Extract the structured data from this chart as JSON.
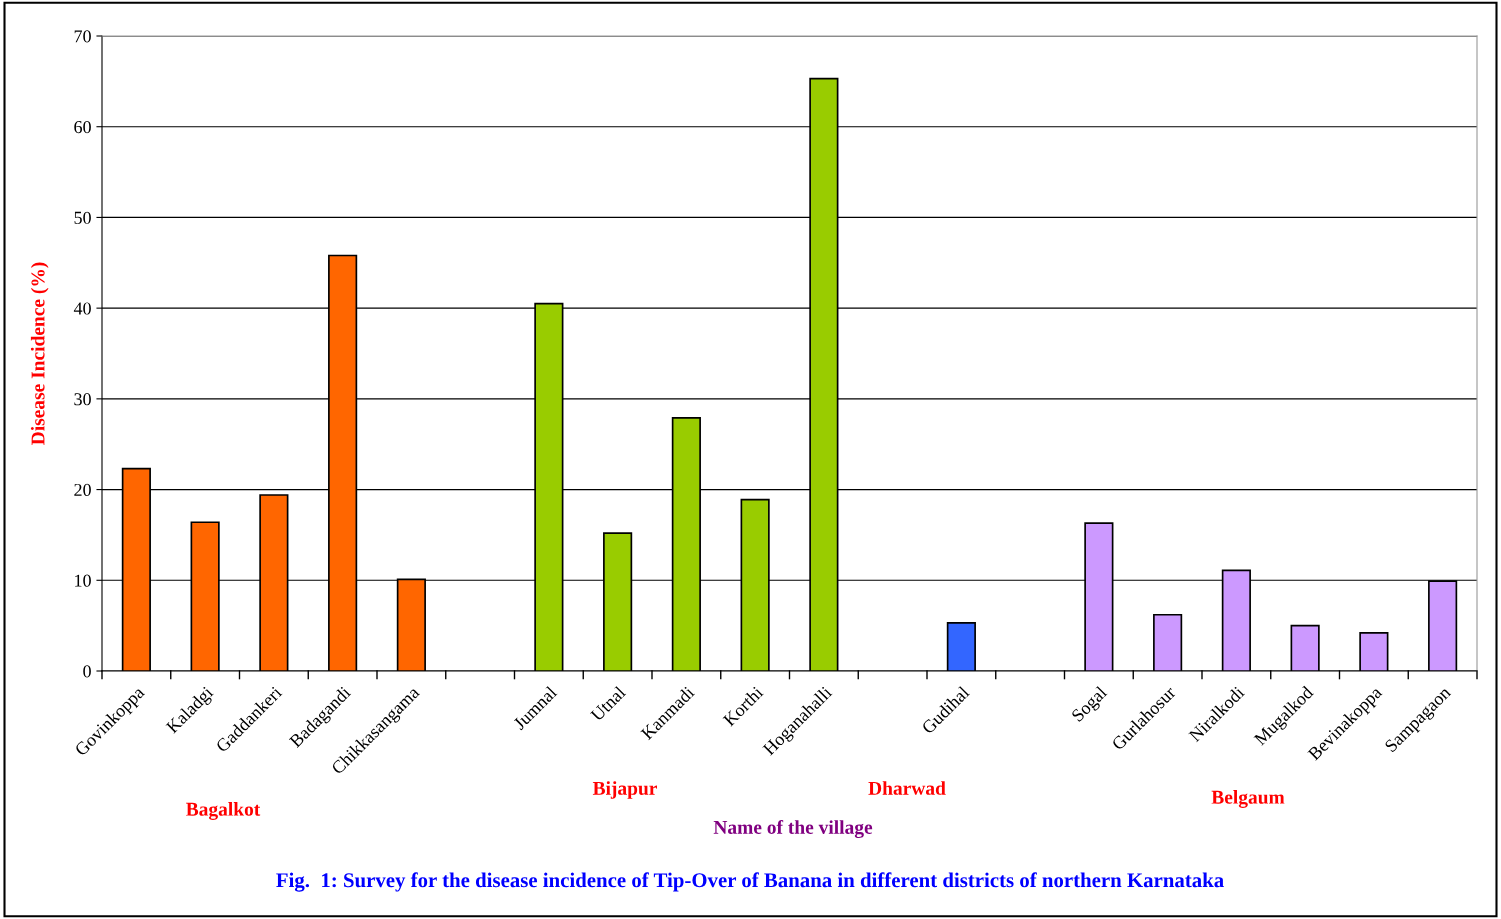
{
  "chart_data": {
    "type": "bar",
    "title": "Fig.  1: Survey for the disease incidence of Tip-Over of Banana in different districts of northern Karnataka",
    "xlabel": "Name of the village",
    "ylabel": "Disease Incidence (%)",
    "categories": [
      "Govinkoppa",
      "Kaladgi",
      "Gaddankeri",
      "Badagandi",
      "Chikkasangama",
      null,
      "Jumnal",
      "Utnal",
      "Kanmadi",
      "Korthi",
      "Hoganahalli",
      null,
      "Gudihal",
      null,
      "Sogal",
      "Gurlahosur",
      "Niralkodi",
      "Mugalkod",
      "Bevinakoppa",
      "Sampagaon"
    ],
    "values": [
      22.3,
      16.4,
      19.4,
      45.8,
      10.1,
      null,
      40.5,
      15.2,
      27.9,
      18.9,
      65.3,
      null,
      5.3,
      null,
      16.3,
      6.2,
      11.1,
      5.0,
      4.2,
      9.9
    ],
    "colors": [
      "#ff6600",
      "#ff6600",
      "#ff6600",
      "#ff6600",
      "#ff6600",
      null,
      "#99cc00",
      "#99cc00",
      "#99cc00",
      "#99cc00",
      "#99cc00",
      null,
      "#3366ff",
      null,
      "#cc99ff",
      "#cc99ff",
      "#cc99ff",
      "#cc99ff",
      "#cc99ff",
      "#cc99ff"
    ],
    "annotations": [
      "Bagalkot",
      "Bijapur",
      "Dharwad",
      "Belgaum"
    ],
    "ylim": [
      0,
      70
    ],
    "yticks": [
      0,
      10,
      20,
      30,
      40,
      50,
      60,
      70
    ],
    "grid": "y",
    "legend": false
  }
}
